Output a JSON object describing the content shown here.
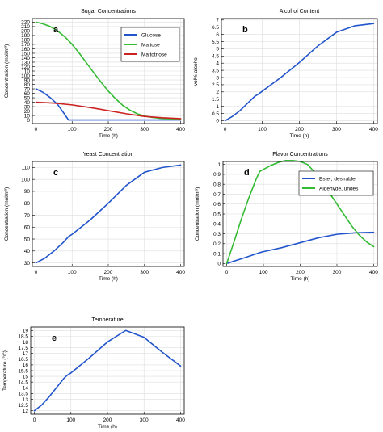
{
  "chart_data": [
    {
      "type": "line",
      "panel_letter": "a",
      "title": "Sugar Concentrations",
      "xlabel": "Time (h)",
      "ylabel": "Concentration (mol/m³)",
      "xlim": [
        -10,
        410
      ],
      "ylim": [
        -8,
        228
      ],
      "xticks": [
        0,
        100,
        200,
        300,
        400
      ],
      "yticks": [
        0,
        10,
        20,
        30,
        40,
        50,
        60,
        70,
        80,
        90,
        100,
        110,
        120,
        130,
        140,
        150,
        160,
        170,
        180,
        190,
        200,
        210,
        220
      ],
      "grid": true,
      "legend": "top-right",
      "series": [
        {
          "name": "Glucose",
          "color": "#2255cc",
          "x": [
            0,
            20,
            40,
            60,
            80,
            90,
            100,
            200,
            300,
            400
          ],
          "y": [
            70,
            62,
            50,
            35,
            12,
            0,
            0,
            0,
            0,
            0
          ]
        },
        {
          "name": "Maltose",
          "color": "#33bb33",
          "x": [
            0,
            20,
            40,
            60,
            80,
            100,
            120,
            140,
            160,
            180,
            200,
            220,
            240,
            260,
            280,
            300,
            320,
            340,
            360,
            380,
            400
          ],
          "y": [
            220,
            216,
            210,
            200,
            187,
            170,
            150,
            128,
            106,
            85,
            65,
            48,
            33,
            22,
            14,
            9,
            6,
            4,
            3,
            2.5,
            2
          ]
        },
        {
          "name": "Maltotriose",
          "color": "#cc2222",
          "x": [
            0,
            50,
            100,
            150,
            200,
            250,
            300,
            350,
            400
          ],
          "y": [
            40,
            38,
            34,
            28,
            21,
            14,
            8,
            5,
            3
          ]
        }
      ]
    },
    {
      "type": "line",
      "panel_letter": "b",
      "title": "Alcohol Content",
      "xlabel": "Time (h)",
      "ylabel": "vol% alcohol",
      "xlim": [
        -10,
        410
      ],
      "ylim": [
        -0.2,
        7.1
      ],
      "xticks": [
        0,
        100,
        200,
        300,
        400
      ],
      "yticks": [
        0,
        0.5,
        1,
        1.5,
        2,
        2.5,
        3,
        3.5,
        4,
        4.5,
        5,
        5.5,
        6,
        6.5,
        7
      ],
      "grid": true,
      "series": [
        {
          "color": "#2255cc",
          "x": [
            0,
            20,
            40,
            60,
            80,
            90,
            100,
            150,
            200,
            250,
            300,
            350,
            400
          ],
          "y": [
            0,
            0.3,
            0.7,
            1.2,
            1.7,
            1.85,
            2.05,
            3.0,
            4.05,
            5.2,
            6.15,
            6.6,
            6.75
          ]
        }
      ]
    },
    {
      "type": "line",
      "panel_letter": "c",
      "title": "Yeast Concentration",
      "xlabel": "Time (h)",
      "ylabel": "Concentration (mol/m³)",
      "xlim": [
        -10,
        410
      ],
      "ylim": [
        27,
        115
      ],
      "xticks": [
        0,
        100,
        200,
        300,
        400
      ],
      "yticks": [
        30,
        40,
        50,
        60,
        70,
        80,
        90,
        100,
        110
      ],
      "grid": true,
      "series": [
        {
          "color": "#2255cc",
          "x": [
            0,
            25,
            50,
            75,
            90,
            100,
            150,
            200,
            250,
            300,
            350,
            400
          ],
          "y": [
            30,
            34,
            40,
            47,
            52,
            54,
            66,
            80,
            95,
            106,
            110,
            112
          ]
        }
      ]
    },
    {
      "type": "line",
      "panel_letter": "d",
      "title": "Flavor Concentrations",
      "xlabel": "Time (h)",
      "ylabel": "Concentration (mol/m³)",
      "xlim": [
        -10,
        410
      ],
      "ylim": [
        -0.03,
        1.03
      ],
      "xticks": [
        0,
        100,
        200,
        300,
        400
      ],
      "yticks": [
        0,
        0.1,
        0.2,
        0.3,
        0.4,
        0.5,
        0.6,
        0.7,
        0.8,
        0.9,
        1
      ],
      "grid": true,
      "legend": "top-right",
      "series": [
        {
          "name": "Ester, desirable",
          "color": "#2255cc",
          "x": [
            0,
            50,
            90,
            100,
            150,
            200,
            250,
            300,
            350,
            400
          ],
          "y": [
            0,
            0.06,
            0.11,
            0.12,
            0.16,
            0.21,
            0.26,
            0.295,
            0.31,
            0.315
          ]
        },
        {
          "name": "Aldehyde, undes",
          "color": "#33bb33",
          "x": [
            0,
            20,
            40,
            60,
            80,
            90,
            100,
            120,
            140,
            160,
            180,
            200,
            220,
            240,
            260,
            280,
            300,
            320,
            340,
            360,
            380,
            400
          ],
          "y": [
            0,
            0.22,
            0.45,
            0.66,
            0.85,
            0.93,
            0.95,
            0.99,
            1.02,
            1.04,
            1.04,
            1.03,
            1.0,
            0.92,
            0.82,
            0.71,
            0.6,
            0.49,
            0.38,
            0.29,
            0.22,
            0.17
          ]
        }
      ]
    },
    {
      "type": "line",
      "panel_letter": "e",
      "title": "Temperature",
      "xlabel": "Time (h)",
      "ylabel": "Temperature (°C)",
      "xlim": [
        -10,
        410
      ],
      "ylim": [
        11.7,
        19.3
      ],
      "xticks": [
        0,
        100,
        200,
        300,
        400
      ],
      "yticks": [
        12,
        12.5,
        13,
        13.5,
        14,
        14.5,
        15,
        15.5,
        16,
        16.5,
        17,
        17.5,
        18,
        18.5,
        19
      ],
      "grid": true,
      "series": [
        {
          "color": "#2255cc",
          "x": [
            0,
            20,
            40,
            60,
            80,
            90,
            100,
            150,
            200,
            250,
            300,
            350,
            400
          ],
          "y": [
            12,
            12.5,
            13.2,
            14,
            14.8,
            15.1,
            15.3,
            16.6,
            18.0,
            19.0,
            18.4,
            17.1,
            15.9
          ]
        }
      ]
    }
  ]
}
